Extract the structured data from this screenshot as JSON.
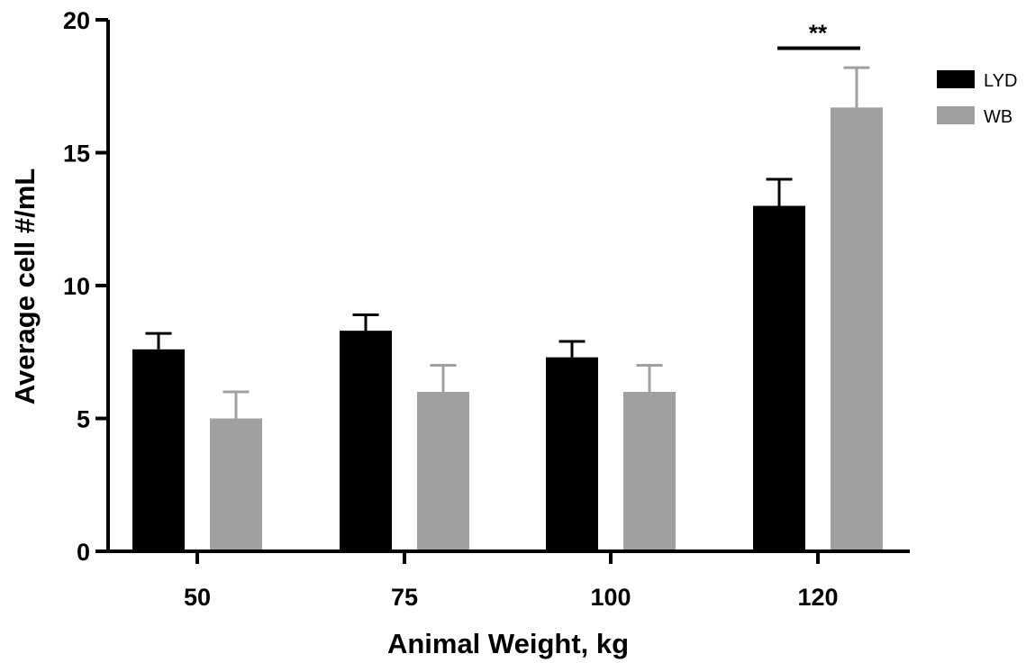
{
  "chart_data": {
    "type": "bar",
    "xlabel": "Animal Weight, kg",
    "ylabel": "Average cell #/mL",
    "categories": [
      "50",
      "75",
      "100",
      "120"
    ],
    "ylim": [
      0,
      20
    ],
    "yticks": [
      "0",
      "5",
      "10",
      "15",
      "20"
    ],
    "grid": false,
    "legend": {
      "placement": "top-right"
    },
    "series": [
      {
        "name": "LYD",
        "color": "#000000",
        "errorbar_color": "#000000",
        "values": [
          7.6,
          8.3,
          7.3,
          13.0
        ],
        "errors": [
          0.6,
          0.6,
          0.6,
          1.0
        ]
      },
      {
        "name": "WB",
        "color": "#a0a0a3",
        "errorbar_color": "#a0a0a3",
        "values": [
          5.0,
          6.0,
          6.0,
          16.7
        ],
        "errors": [
          1.0,
          1.0,
          1.0,
          1.5
        ]
      }
    ],
    "annotations": [
      {
        "text": "**",
        "category": "120",
        "y": 19.0
      }
    ]
  }
}
